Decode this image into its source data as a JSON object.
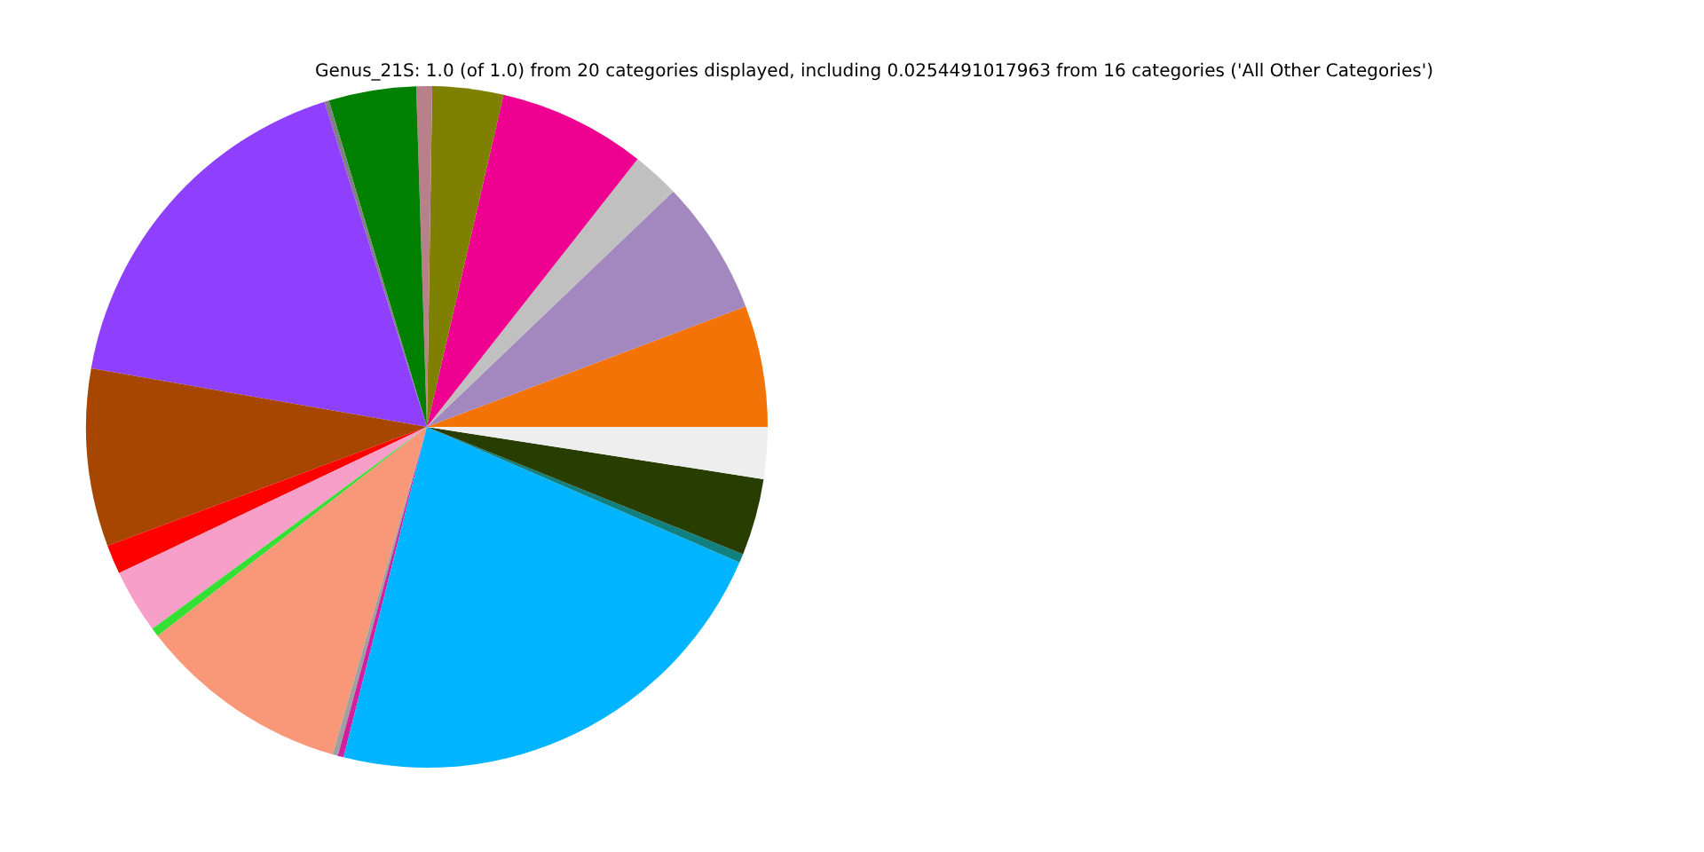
{
  "chart_data": {
    "type": "pie",
    "title": "Genus_21S: 1.0 (of 1.0) from 20 categories displayed, including 0.0254491017963 from 16 categories ('All Other Categories')",
    "categories": [
      null,
      null,
      null,
      null,
      null,
      null,
      null,
      null,
      null,
      null,
      null,
      null,
      null,
      null,
      null,
      null,
      null,
      null,
      null,
      null
    ],
    "values": [
      5.75,
      6.39,
      2.25,
      7.0,
      3.36,
      0.75,
      4.14,
      0.22,
      17.39,
      8.42,
      1.39,
      3.03,
      0.42,
      10.03,
      0.25,
      0.28,
      22.42,
      0.42,
      3.64,
      2.45
    ],
    "colors": [
      "#f47306",
      "#a388bf",
      "#c0c0c0",
      "#ee0090",
      "#808000",
      "#b8808a",
      "#008000",
      "#808080",
      "#8f40ff",
      "#a64600",
      "#ff0000",
      "#f79fc9",
      "#33e033",
      "#f89878",
      "#a0a0a0",
      "#d020a0",
      "#00b4ff",
      "#108080",
      "#283e00",
      "#eeeeee"
    ]
  }
}
